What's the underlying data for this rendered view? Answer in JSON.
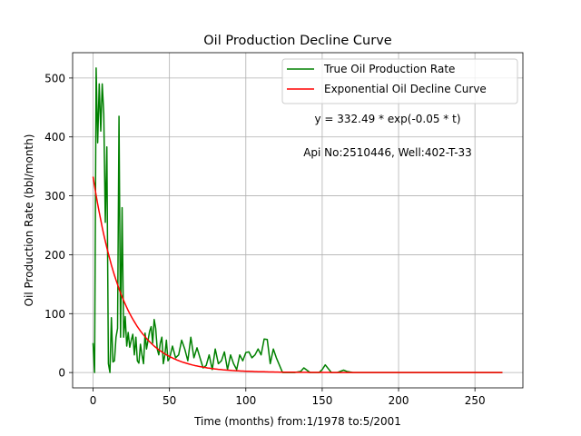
{
  "chart_data": {
    "type": "line",
    "title": "Oil Production Decline Curve",
    "xlabel": "Time (months) from:1/1978 to:5/2001",
    "ylabel": "Oil Production Rate (bbl/month)",
    "xlim": [
      -13.4,
      281.4
    ],
    "ylim": [
      -26,
      543
    ],
    "xticks": [
      0,
      50,
      100,
      150,
      200,
      250
    ],
    "yticks": [
      0,
      100,
      200,
      300,
      400,
      500
    ],
    "grid": true,
    "legend_position": "upper right",
    "annotations": {
      "equation": "y = 332.49 * exp(-0.05 * t)",
      "well_info": "Api No:2510446, Well:402-T-33"
    },
    "series": [
      {
        "name": "True Oil Production Rate",
        "color": "#008000",
        "x": [
          0,
          1,
          2,
          3,
          4,
          5,
          6,
          7,
          8,
          9,
          10,
          11,
          12,
          13,
          14,
          15,
          16,
          17,
          18,
          19,
          20,
          21,
          22,
          23,
          24,
          25,
          26,
          27,
          28,
          29,
          30,
          31,
          32,
          33,
          34,
          35,
          36,
          37,
          38,
          39,
          40,
          41,
          42,
          43,
          44,
          45,
          46,
          47,
          48,
          49,
          50,
          52,
          54,
          56,
          58,
          60,
          62,
          64,
          66,
          68,
          70,
          72,
          74,
          76,
          78,
          80,
          82,
          84,
          86,
          88,
          90,
          92,
          94,
          96,
          98,
          100,
          102,
          104,
          106,
          108,
          110,
          112,
          114,
          116,
          118,
          120,
          124,
          128,
          132,
          136,
          138,
          142,
          146,
          148,
          150,
          152,
          156,
          160,
          164,
          166,
          170,
          180,
          200,
          220,
          240,
          260,
          268
        ],
        "y": [
          50,
          0,
          517,
          390,
          490,
          410,
          490,
          440,
          255,
          383,
          15,
          0,
          93,
          18,
          20,
          60,
          75,
          435,
          60,
          280,
          60,
          95,
          45,
          68,
          43,
          55,
          65,
          30,
          60,
          20,
          16,
          48,
          30,
          15,
          67,
          40,
          55,
          70,
          78,
          50,
          90,
          75,
          40,
          30,
          50,
          60,
          15,
          30,
          55,
          20,
          24,
          45,
          25,
          30,
          55,
          40,
          20,
          60,
          25,
          42,
          25,
          8,
          12,
          30,
          5,
          40,
          15,
          20,
          35,
          5,
          30,
          15,
          5,
          30,
          20,
          34,
          35,
          25,
          30,
          40,
          30,
          57,
          56,
          15,
          40,
          25,
          0,
          0,
          0,
          2,
          8,
          0,
          0,
          0,
          5,
          13,
          0,
          0,
          4,
          2,
          0,
          0,
          0,
          0,
          0,
          0,
          0
        ]
      },
      {
        "name": "Exponential Oil Decline Curve",
        "color": "#ff0000",
        "function": "332.49 * exp(-0.05 * t)",
        "x_range": [
          0,
          268
        ]
      }
    ]
  }
}
